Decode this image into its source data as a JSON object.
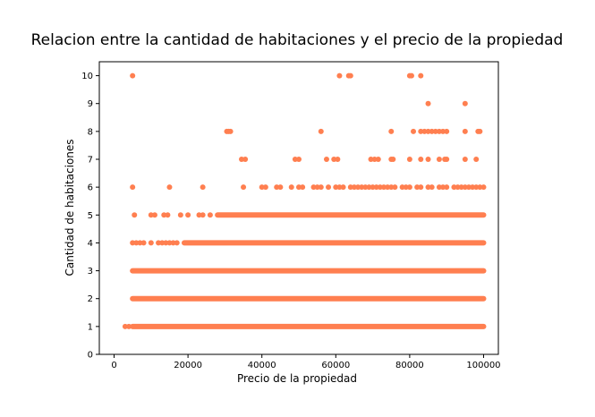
{
  "chart_data": {
    "type": "scatter",
    "title": "Relacion entre la cantidad de habitaciones y el precio de la propiedad",
    "xlabel": "Precio de la propiedad",
    "ylabel": "Cantidad de habitaciones",
    "xlim": [
      -4000,
      104000
    ],
    "ylim": [
      0,
      10.5
    ],
    "xticks": [
      0,
      20000,
      40000,
      60000,
      80000,
      100000
    ],
    "yticks": [
      0,
      1,
      2,
      3,
      4,
      5,
      6,
      7,
      8,
      9,
      10
    ],
    "grid": false,
    "marker_color": "#ff7f50",
    "series": [
      {
        "bands": [
          {
            "y": 1,
            "x_start": 5000,
            "x_end": 100000
          },
          {
            "y": 2,
            "x_start": 5000,
            "x_end": 100000
          },
          {
            "y": 3,
            "x_start": 5000,
            "x_end": 100000
          },
          {
            "y": 4,
            "x_start": 19000,
            "x_end": 100000
          },
          {
            "y": 5,
            "x_start": 28000,
            "x_end": 100000
          }
        ],
        "points": [
          {
            "x": 3000,
            "y": 1
          },
          {
            "x": 4000,
            "y": 1
          },
          {
            "x": 5000,
            "y": 4
          },
          {
            "x": 6000,
            "y": 4
          },
          {
            "x": 7000,
            "y": 4
          },
          {
            "x": 8000,
            "y": 4
          },
          {
            "x": 10000,
            "y": 4
          },
          {
            "x": 12000,
            "y": 4
          },
          {
            "x": 13000,
            "y": 4
          },
          {
            "x": 14000,
            "y": 4
          },
          {
            "x": 15000,
            "y": 4
          },
          {
            "x": 16000,
            "y": 4
          },
          {
            "x": 17000,
            "y": 4
          },
          {
            "x": 5500,
            "y": 5
          },
          {
            "x": 10000,
            "y": 5
          },
          {
            "x": 11000,
            "y": 5
          },
          {
            "x": 13500,
            "y": 5
          },
          {
            "x": 14500,
            "y": 5
          },
          {
            "x": 18000,
            "y": 5
          },
          {
            "x": 20000,
            "y": 5
          },
          {
            "x": 23000,
            "y": 5
          },
          {
            "x": 24000,
            "y": 5
          },
          {
            "x": 26000,
            "y": 5
          },
          {
            "x": 5000,
            "y": 6
          },
          {
            "x": 15000,
            "y": 6
          },
          {
            "x": 24000,
            "y": 6
          },
          {
            "x": 35000,
            "y": 6
          },
          {
            "x": 40000,
            "y": 6
          },
          {
            "x": 41000,
            "y": 6
          },
          {
            "x": 44000,
            "y": 6
          },
          {
            "x": 45000,
            "y": 6
          },
          {
            "x": 48000,
            "y": 6
          },
          {
            "x": 50000,
            "y": 6
          },
          {
            "x": 51000,
            "y": 6
          },
          {
            "x": 54000,
            "y": 6
          },
          {
            "x": 55000,
            "y": 6
          },
          {
            "x": 56000,
            "y": 6
          },
          {
            "x": 58000,
            "y": 6
          },
          {
            "x": 60000,
            "y": 6
          },
          {
            "x": 61000,
            "y": 6
          },
          {
            "x": 62000,
            "y": 6
          },
          {
            "x": 64000,
            "y": 6
          },
          {
            "x": 65000,
            "y": 6
          },
          {
            "x": 66000,
            "y": 6
          },
          {
            "x": 67000,
            "y": 6
          },
          {
            "x": 68000,
            "y": 6
          },
          {
            "x": 69000,
            "y": 6
          },
          {
            "x": 70000,
            "y": 6
          },
          {
            "x": 71000,
            "y": 6
          },
          {
            "x": 72000,
            "y": 6
          },
          {
            "x": 73000,
            "y": 6
          },
          {
            "x": 74000,
            "y": 6
          },
          {
            "x": 75000,
            "y": 6
          },
          {
            "x": 76000,
            "y": 6
          },
          {
            "x": 78000,
            "y": 6
          },
          {
            "x": 79000,
            "y": 6
          },
          {
            "x": 80000,
            "y": 6
          },
          {
            "x": 82000,
            "y": 6
          },
          {
            "x": 83000,
            "y": 6
          },
          {
            "x": 85000,
            "y": 6
          },
          {
            "x": 86000,
            "y": 6
          },
          {
            "x": 88000,
            "y": 6
          },
          {
            "x": 89000,
            "y": 6
          },
          {
            "x": 90000,
            "y": 6
          },
          {
            "x": 92000,
            "y": 6
          },
          {
            "x": 93000,
            "y": 6
          },
          {
            "x": 94000,
            "y": 6
          },
          {
            "x": 95000,
            "y": 6
          },
          {
            "x": 96000,
            "y": 6
          },
          {
            "x": 97000,
            "y": 6
          },
          {
            "x": 98000,
            "y": 6
          },
          {
            "x": 99000,
            "y": 6
          },
          {
            "x": 100000,
            "y": 6
          },
          {
            "x": 34500,
            "y": 7
          },
          {
            "x": 35500,
            "y": 7
          },
          {
            "x": 49000,
            "y": 7
          },
          {
            "x": 50000,
            "y": 7
          },
          {
            "x": 57500,
            "y": 7
          },
          {
            "x": 59500,
            "y": 7
          },
          {
            "x": 60500,
            "y": 7
          },
          {
            "x": 69500,
            "y": 7
          },
          {
            "x": 70500,
            "y": 7
          },
          {
            "x": 71500,
            "y": 7
          },
          {
            "x": 75000,
            "y": 7
          },
          {
            "x": 75500,
            "y": 7
          },
          {
            "x": 80000,
            "y": 7
          },
          {
            "x": 83000,
            "y": 7
          },
          {
            "x": 85000,
            "y": 7
          },
          {
            "x": 88000,
            "y": 7
          },
          {
            "x": 89500,
            "y": 7
          },
          {
            "x": 90000,
            "y": 7
          },
          {
            "x": 95000,
            "y": 7
          },
          {
            "x": 98000,
            "y": 7
          },
          {
            "x": 30500,
            "y": 8
          },
          {
            "x": 31000,
            "y": 8
          },
          {
            "x": 31500,
            "y": 8
          },
          {
            "x": 56000,
            "y": 8
          },
          {
            "x": 75000,
            "y": 8
          },
          {
            "x": 81000,
            "y": 8
          },
          {
            "x": 83000,
            "y": 8
          },
          {
            "x": 84000,
            "y": 8
          },
          {
            "x": 85000,
            "y": 8
          },
          {
            "x": 86000,
            "y": 8
          },
          {
            "x": 87000,
            "y": 8
          },
          {
            "x": 88000,
            "y": 8
          },
          {
            "x": 89000,
            "y": 8
          },
          {
            "x": 90000,
            "y": 8
          },
          {
            "x": 95000,
            "y": 8
          },
          {
            "x": 98500,
            "y": 8
          },
          {
            "x": 99000,
            "y": 8
          },
          {
            "x": 85000,
            "y": 9
          },
          {
            "x": 95000,
            "y": 9
          },
          {
            "x": 5000,
            "y": 10
          },
          {
            "x": 61000,
            "y": 10
          },
          {
            "x": 63500,
            "y": 10
          },
          {
            "x": 64000,
            "y": 10
          },
          {
            "x": 80000,
            "y": 10
          },
          {
            "x": 80500,
            "y": 10
          },
          {
            "x": 83000,
            "y": 10
          }
        ]
      }
    ]
  }
}
